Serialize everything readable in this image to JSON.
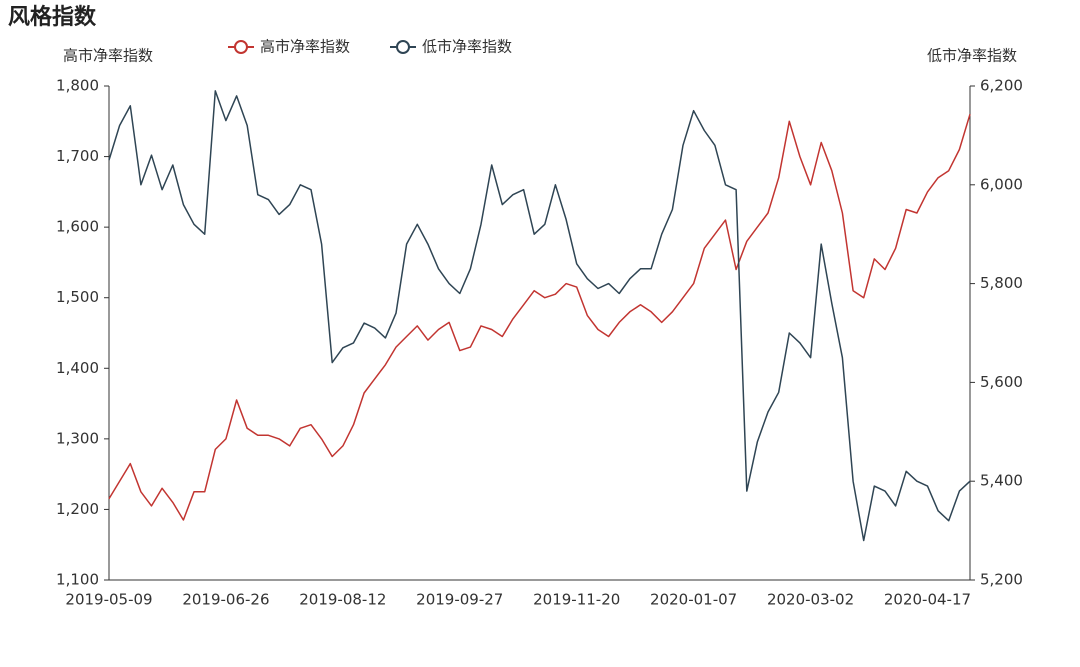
{
  "chart_data": {
    "type": "line",
    "title": "风格指数",
    "y_label": "高市净率指数",
    "y2_label": "低市净率指数",
    "categories": [
      "2019-05-09",
      null,
      null,
      null,
      null,
      null,
      null,
      null,
      null,
      null,
      null,
      "2019-06-26",
      null,
      null,
      null,
      null,
      null,
      null,
      null,
      null,
      null,
      null,
      "2019-08-12",
      null,
      null,
      null,
      null,
      null,
      null,
      null,
      null,
      null,
      null,
      "2019-09-27",
      null,
      null,
      null,
      null,
      null,
      null,
      null,
      null,
      null,
      null,
      "2019-11-20",
      null,
      null,
      null,
      null,
      null,
      null,
      null,
      null,
      null,
      null,
      "2020-01-07",
      null,
      null,
      null,
      null,
      null,
      null,
      null,
      null,
      null,
      null,
      "2020-03-02",
      null,
      null,
      null,
      null,
      null,
      null,
      null,
      null,
      null,
      null,
      "2020-04-17",
      null,
      null,
      null,
      null
    ],
    "series": [
      {
        "name": "高市净率指数",
        "color": "#c23531",
        "axis": "y",
        "values": [
          1215,
          1240,
          1265,
          1225,
          1205,
          1230,
          1210,
          1185,
          1225,
          1225,
          1285,
          1300,
          1355,
          1315,
          1305,
          1305,
          1300,
          1290,
          1315,
          1320,
          1300,
          1275,
          1290,
          1320,
          1365,
          1385,
          1405,
          1430,
          1445,
          1460,
          1440,
          1455,
          1465,
          1425,
          1430,
          1460,
          1455,
          1445,
          1470,
          1490,
          1510,
          1500,
          1505,
          1520,
          1515,
          1475,
          1455,
          1445,
          1465,
          1480,
          1490,
          1480,
          1465,
          1480,
          1500,
          1520,
          1570,
          1590,
          1610,
          1540,
          1580,
          1600,
          1620,
          1670,
          1750,
          1700,
          1660,
          1720,
          1680,
          1620,
          1510,
          1500,
          1555,
          1540,
          1570,
          1625,
          1620,
          1650,
          1670,
          1680,
          1710,
          1760
        ]
      },
      {
        "name": "低市净率指数",
        "color": "#2f4554",
        "axis": "y2",
        "values": [
          6050,
          6120,
          6160,
          6000,
          6060,
          5990,
          6040,
          5960,
          5920,
          5900,
          6190,
          6130,
          6180,
          6120,
          5980,
          5970,
          5940,
          5960,
          6000,
          5990,
          5880,
          5640,
          5670,
          5680,
          5720,
          5710,
          5690,
          5740,
          5880,
          5920,
          5880,
          5830,
          5800,
          5780,
          5830,
          5920,
          6040,
          5960,
          5980,
          5990,
          5900,
          5920,
          6000,
          5930,
          5840,
          5810,
          5790,
          5800,
          5780,
          5810,
          5830,
          5830,
          5900,
          5950,
          6080,
          6150,
          6110,
          6080,
          6000,
          5990,
          5380,
          5480,
          5540,
          5580,
          5700,
          5680,
          5650,
          5880,
          5760,
          5650,
          5400,
          5280,
          5390,
          5380,
          5350,
          5420,
          5400,
          5390,
          5340,
          5320,
          5380,
          5400
        ]
      }
    ],
    "ylim": [
      1100,
      1800
    ],
    "yticks": [
      {
        "value": 1100,
        "label": "1,100"
      },
      {
        "value": 1200,
        "label": "1,200"
      },
      {
        "value": 1300,
        "label": "1,300"
      },
      {
        "value": 1400,
        "label": "1,400"
      },
      {
        "value": 1500,
        "label": "1,500"
      },
      {
        "value": 1600,
        "label": "1,600"
      },
      {
        "value": 1700,
        "label": "1,700"
      },
      {
        "value": 1800,
        "label": "1,800"
      }
    ],
    "y2lim": [
      5200,
      6200
    ],
    "y2ticks": [
      {
        "value": 5200,
        "label": "5,200"
      },
      {
        "value": 5400,
        "label": "5,400"
      },
      {
        "value": 5600,
        "label": "5,600"
      },
      {
        "value": 5800,
        "label": "5,800"
      },
      {
        "value": 6000,
        "label": "6,000"
      },
      {
        "value": 6200,
        "label": "6,200"
      }
    ],
    "grid": false,
    "legend": "top"
  }
}
